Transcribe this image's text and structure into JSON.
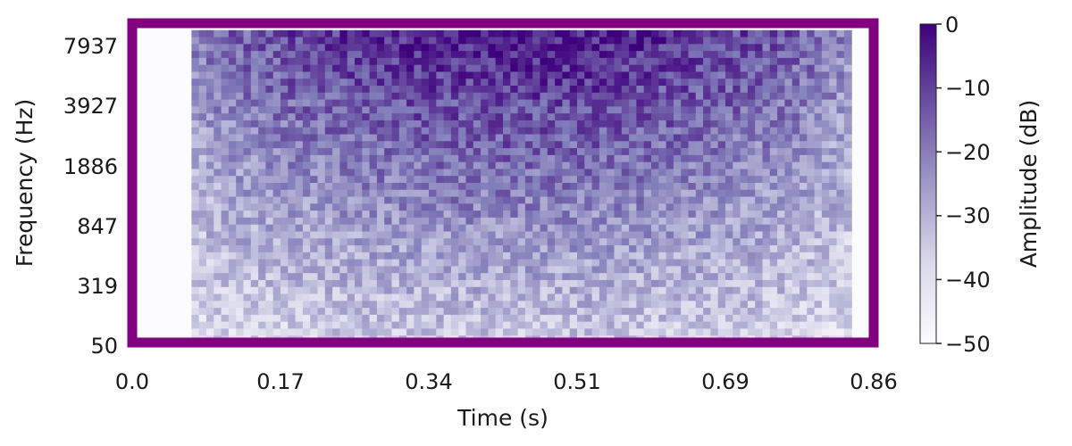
{
  "chart_data": {
    "type": "heatmap",
    "xlabel": "Time (s)",
    "ylabel": "Frequency (Hz)",
    "x_ticks": [
      "0.0",
      "0.17",
      "0.34",
      "0.51",
      "0.69",
      "0.86"
    ],
    "y_ticks": [
      "50",
      "319",
      "847",
      "1886",
      "3927",
      "7937"
    ],
    "x_range": [
      0.0,
      0.86
    ],
    "y_range": [
      50,
      7937
    ],
    "colorbar": {
      "label": "Amplitude (dB)",
      "ticks": [
        "0",
        "−10",
        "−20",
        "−30",
        "−40",
        "−50"
      ],
      "range": [
        -50,
        0
      ],
      "colormap": "Purples"
    },
    "signal_time_range": [
      0.07,
      0.83
    ],
    "peak_time": 0.45,
    "level_at_high_freq_peak_db": -3,
    "level_at_low_freq_db": -45,
    "background_level_db": -50,
    "frame_color": "#800080"
  }
}
